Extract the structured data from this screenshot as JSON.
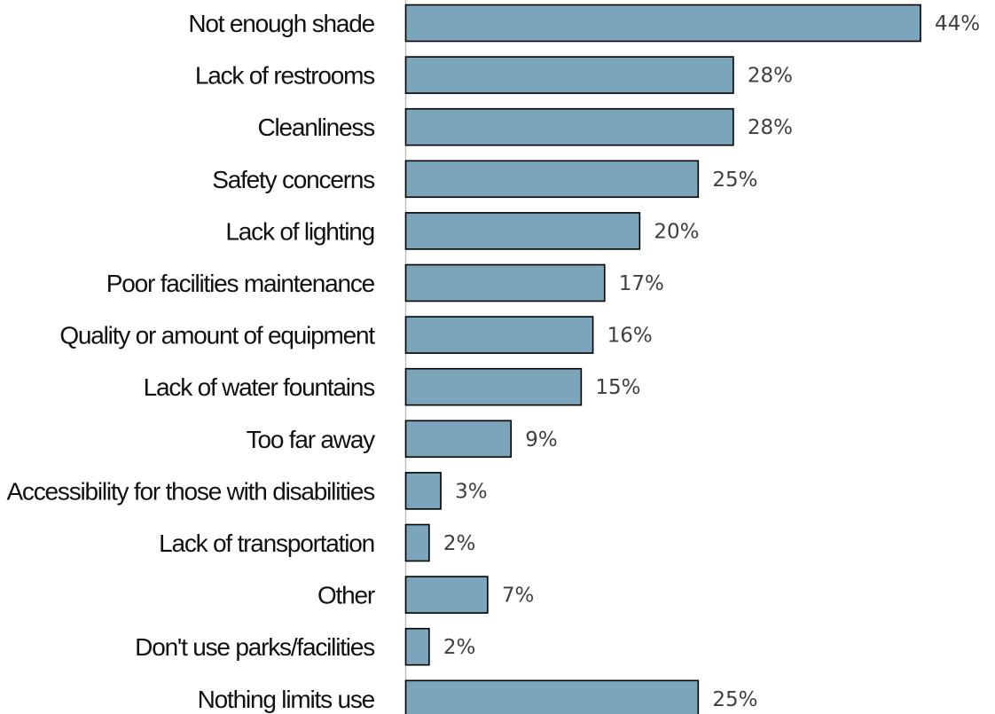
{
  "chart_data": {
    "type": "bar",
    "orientation": "horizontal",
    "categories": [
      "Not enough shade",
      "Lack of restrooms",
      "Cleanliness",
      "Safety concerns",
      "Lack of lighting",
      "Poor facilities maintenance",
      "Quality or amount of equipment",
      "Lack of water fountains",
      "Too far away",
      "Accessibility for those with disabilities",
      "Lack of transportation",
      "Other",
      "Don't use parks/facilities",
      "Nothing limits use"
    ],
    "values": [
      44,
      28,
      28,
      25,
      20,
      17,
      16,
      15,
      9,
      3,
      2,
      7,
      2,
      25
    ],
    "value_labels": [
      "44%",
      "28%",
      "28%",
      "25%",
      "20%",
      "17%",
      "16%",
      "15%",
      "9%",
      "3%",
      "2%",
      "7%",
      "2%",
      "25%"
    ],
    "xlim": [
      0,
      44
    ],
    "grid": false,
    "legend": "none",
    "bar_color": "#7aa5bb",
    "bar_edge_color": "#000000"
  }
}
